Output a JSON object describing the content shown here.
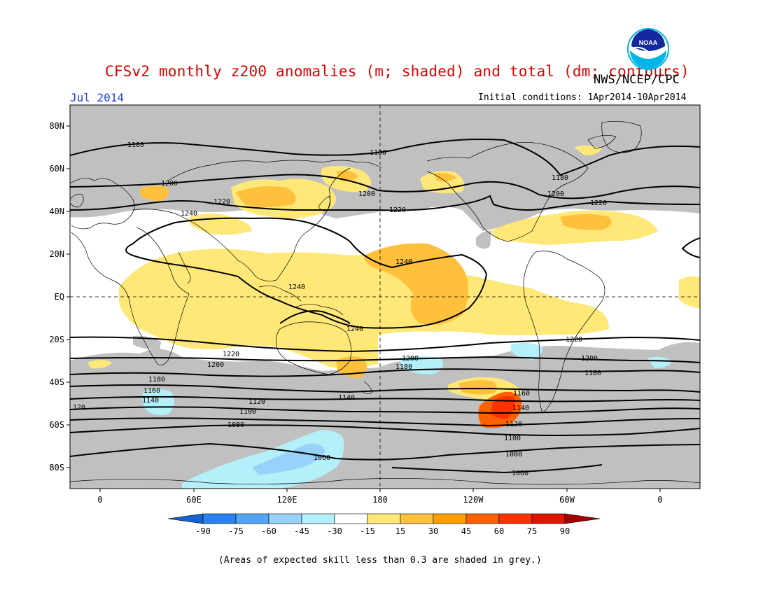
{
  "title": "CFSv2 monthly z200 anomalies (m; shaded) and total (dm; contours)",
  "agency": "NWS/NCEP/CPC",
  "month": "Jul 2014",
  "initial_conditions": "Initial conditions: 1Apr2014-10Apr2014",
  "footnote": "(Areas of expected skill less than 0.3 are shaded in grey.)",
  "logo_text": "NOAA",
  "lat_labels": [
    "80N",
    "60N",
    "40N",
    "20N",
    "EQ",
    "20S",
    "40S",
    "60S",
    "80S"
  ],
  "lon_labels": [
    "0",
    "60E",
    "120E",
    "180",
    "120W",
    "60W",
    "0"
  ],
  "colorbar": {
    "ticks": [
      "-90",
      "-75",
      "-60",
      "-45",
      "-30",
      "-15",
      "15",
      "30",
      "45",
      "60",
      "75",
      "90"
    ],
    "colors": [
      "#1464d2",
      "#2882f0",
      "#50a5f5",
      "#96d2fa",
      "#b4f0fa",
      "#ffffff",
      "#ffe878",
      "#ffc03c",
      "#ffa000",
      "#ff6000",
      "#ff3200",
      "#e11400",
      "#a50000"
    ]
  },
  "colors": {
    "skill_grey": "#c0c0c0",
    "title_red": "#e00000",
    "month_blue": "#1f3fe0"
  },
  "contour_labels": {
    "c1180": "1180",
    "c1200": "1200",
    "c1220": "1220",
    "c1240": "1240",
    "c1160": "1160",
    "c1140": "1140",
    "c1120": "1120",
    "c1100": "1100",
    "c1080": "1080",
    "c1060": "1060",
    "c120": "120"
  }
}
